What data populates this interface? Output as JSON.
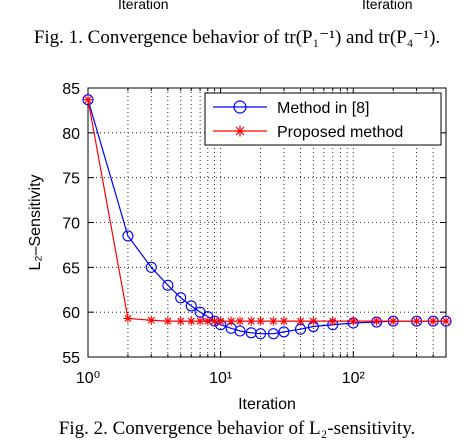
{
  "page": {
    "top_left_label": "Iteration",
    "top_right_label": "Iteration",
    "caption_top": "Fig. 1.   Convergence behavior of tr(P₁⁻¹) and tr(P₄⁻¹).",
    "caption_bottom": "Fig. 2.   Convergence behavior of L₂-sensitivity."
  },
  "chart_data": {
    "type": "line",
    "title": "",
    "xlabel": "Iteration",
    "ylabel": "L₂–Sensitivity",
    "x_scale": "log",
    "xlim": [
      1,
      500
    ],
    "ylim": [
      55,
      85
    ],
    "x_ticks": [
      1,
      10,
      100
    ],
    "x_tick_labels": [
      "10⁰",
      "10¹",
      "10²"
    ],
    "y_ticks": [
      55,
      60,
      65,
      70,
      75,
      80,
      85
    ],
    "y_tick_labels": [
      "55",
      "60",
      "65",
      "70",
      "75",
      "80",
      "85"
    ],
    "grid": "dotted",
    "legend_position": "top-right",
    "colors": {
      "method_8": "#0000ff",
      "proposed": "#ff0000"
    },
    "series": [
      {
        "name": "Method in [8]",
        "marker": "circle",
        "x": [
          1,
          2,
          3,
          4,
          5,
          6,
          7,
          8,
          9,
          10,
          12,
          14,
          17,
          20,
          25,
          30,
          40,
          50,
          70,
          100,
          150,
          200,
          300,
          400,
          500
        ],
        "y": [
          83.7,
          68.5,
          65.0,
          63.0,
          61.6,
          60.7,
          60.0,
          59.5,
          59.0,
          58.6,
          58.2,
          57.9,
          57.7,
          57.6,
          57.6,
          57.8,
          58.1,
          58.4,
          58.6,
          58.8,
          58.9,
          59.0,
          59.0,
          59.0,
          59.0
        ]
      },
      {
        "name": "Proposed method",
        "marker": "star",
        "x": [
          1,
          2,
          3,
          4,
          5,
          6,
          7,
          8,
          9,
          10,
          12,
          14,
          17,
          20,
          25,
          30,
          40,
          50,
          70,
          100,
          150,
          200,
          300,
          400,
          500
        ],
        "y": [
          83.7,
          59.3,
          59.1,
          59.0,
          59.0,
          59.0,
          59.0,
          59.0,
          59.0,
          59.0,
          59.0,
          59.0,
          59.0,
          59.0,
          59.0,
          59.0,
          59.0,
          59.0,
          59.0,
          59.0,
          59.0,
          59.0,
          59.0,
          59.0,
          59.0
        ]
      }
    ]
  }
}
